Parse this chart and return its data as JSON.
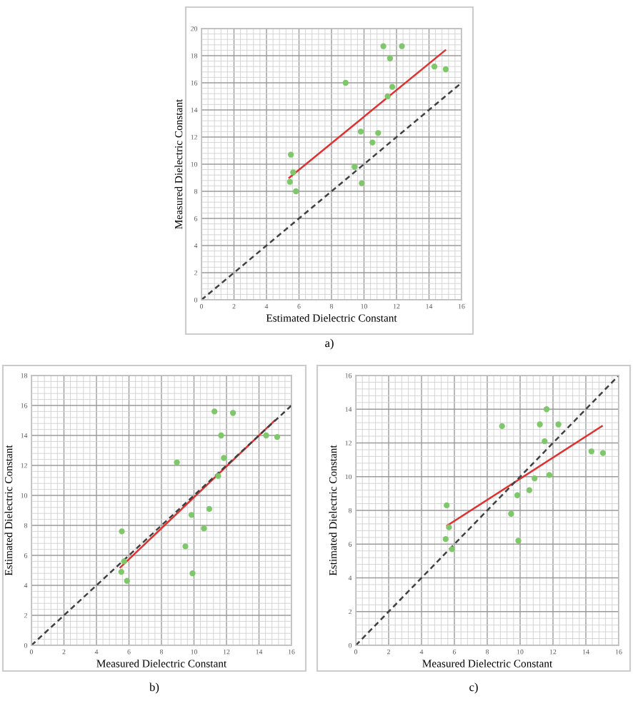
{
  "chart_data": [
    {
      "type": "scatter",
      "xlabel": "Estimated Dielectric Constant",
      "ylabel": "Measured Dielectric Constant",
      "annotations": [
        "a)"
      ],
      "xlim": [
        0,
        16
      ],
      "ylim": [
        0,
        20
      ],
      "xticks": [
        0,
        2,
        4,
        6,
        8,
        10,
        12,
        14,
        16
      ],
      "yticks": [
        0,
        2,
        4,
        6,
        8,
        10,
        12,
        14,
        16,
        18,
        20
      ],
      "grid": true,
      "series": [
        {
          "marker": "circle",
          "color": "#7ec86a",
          "x": [
            5.5,
            5.64,
            5.44,
            5.81,
            8.87,
            9.42,
            9.8,
            9.86,
            10.52,
            10.87,
            11.19,
            11.45,
            11.6,
            11.74,
            12.33,
            14.33,
            15.03
          ],
          "values": [
            10.7,
            9.4,
            8.7,
            8.0,
            16.0,
            9.8,
            12.4,
            8.6,
            11.6,
            12.3,
            18.7,
            15.0,
            17.8,
            15.7,
            18.7,
            17.2,
            17.0
          ]
        },
        {
          "type": "line",
          "color": "#e03030",
          "line_style": "solid",
          "x": [
            5.4,
            15.0
          ],
          "values": [
            9.0,
            18.4
          ]
        },
        {
          "type": "line",
          "color": "#404040",
          "line_style": "dashed",
          "x": [
            0,
            16
          ],
          "values": [
            0,
            16
          ]
        }
      ]
    },
    {
      "type": "scatter",
      "xlabel": "Measured Dielectric Constant",
      "ylabel": "Estimated Dielectric Constant",
      "annotations": [
        "b)"
      ],
      "xlim": [
        0,
        16
      ],
      "ylim": [
        0,
        18
      ],
      "xticks": [
        0,
        2,
        4,
        6,
        8,
        10,
        12,
        14,
        16
      ],
      "yticks": [
        0,
        2,
        4,
        6,
        8,
        10,
        12,
        14,
        16,
        18
      ],
      "grid": true,
      "series": [
        {
          "marker": "circle",
          "color": "#7ec86a",
          "x": [
            5.56,
            5.53,
            5.7,
            5.88,
            8.95,
            9.47,
            9.85,
            9.91,
            10.61,
            10.94,
            11.26,
            11.49,
            11.67,
            11.84,
            12.4,
            14.44,
            15.12
          ],
          "values": [
            7.6,
            4.9,
            5.6,
            4.3,
            12.2,
            6.6,
            8.7,
            4.8,
            7.8,
            9.1,
            15.6,
            11.3,
            14.0,
            12.5,
            15.5,
            14.0,
            13.9
          ]
        },
        {
          "type": "line",
          "color": "#e03030",
          "line_style": "solid",
          "x": [
            5.47,
            14.97
          ],
          "values": [
            5.2,
            15.0
          ]
        },
        {
          "type": "line",
          "color": "#404040",
          "line_style": "dashed",
          "x": [
            0,
            16
          ],
          "values": [
            0,
            16
          ]
        }
      ]
    },
    {
      "type": "scatter",
      "xlabel": "Measured Dielectric Constant",
      "ylabel": "Estimated Dielectric Constant",
      "annotations": [
        "c)"
      ],
      "xlim": [
        0,
        16
      ],
      "ylim": [
        0,
        16
      ],
      "xticks": [
        0,
        2,
        4,
        6,
        8,
        10,
        12,
        14,
        16
      ],
      "yticks": [
        0,
        2,
        4,
        6,
        8,
        10,
        12,
        14,
        16
      ],
      "grid": true,
      "series": [
        {
          "marker": "circle",
          "color": "#7ec86a",
          "x": [
            5.53,
            5.47,
            5.67,
            5.85,
            8.9,
            9.45,
            9.83,
            9.89,
            10.56,
            10.88,
            11.2,
            11.49,
            11.61,
            11.78,
            12.33,
            14.34,
            15.04
          ],
          "values": [
            8.3,
            6.3,
            7.0,
            5.7,
            13.0,
            7.8,
            8.9,
            6.2,
            9.2,
            9.9,
            13.1,
            12.1,
            14.0,
            10.1,
            13.1,
            11.5,
            11.4
          ]
        },
        {
          "type": "line",
          "color": "#e03030",
          "line_style": "solid",
          "x": [
            5.56,
            14.98
          ],
          "values": [
            7.1,
            13.0
          ]
        },
        {
          "type": "line",
          "color": "#404040",
          "line_style": "dashed",
          "x": [
            0,
            16
          ],
          "values": [
            0,
            16
          ]
        }
      ]
    }
  ]
}
